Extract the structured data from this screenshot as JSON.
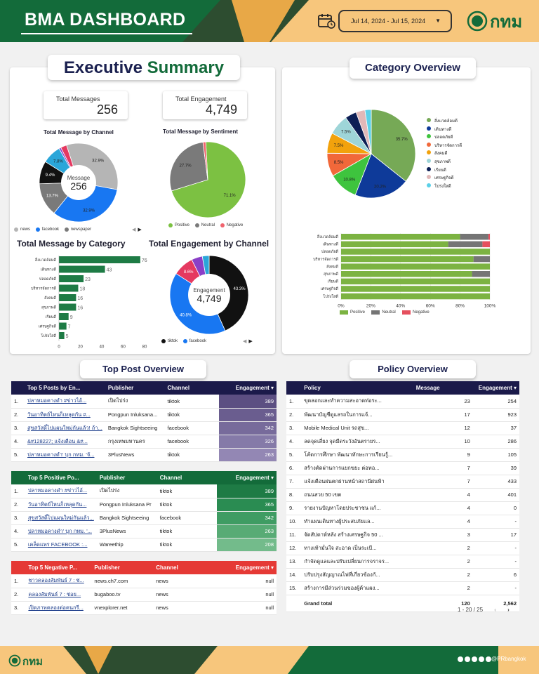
{
  "header": {
    "title": "BMA DASHBOARD",
    "date_range": "Jul 14, 2024 - Jul 15, 2024",
    "logo_text": "กทม"
  },
  "executive": {
    "title_a": "Executive",
    "title_b": "Summary",
    "kpi_messages_label": "Total Messages",
    "kpi_messages": "256",
    "kpi_engagement_label": "Total Engagement",
    "kpi_engagement": "4,749"
  },
  "chart_data": [
    {
      "type": "pie",
      "title": "Total Message by Channel",
      "center_label": "Message",
      "center_value": "256",
      "categories": [
        "news",
        "facebook",
        "newspaper",
        "",
        "",
        "",
        ""
      ],
      "values": [
        32.9,
        32.9,
        13.7,
        9.4,
        7.8,
        0.8,
        2.5
      ],
      "colors": [
        "#b5b5b5",
        "#1877f2",
        "#7a7a7a",
        "#111111",
        "#2aa6d9",
        "#8a3fc7",
        "#e53960"
      ],
      "slice_labels": [
        "32.9%",
        "32.9%",
        "13.7%",
        "9.4%",
        "7.8%",
        "",
        ""
      ]
    },
    {
      "type": "pie",
      "title": "Total Message by Sentiment",
      "categories": [
        "Positive",
        "Neutral",
        "Negative"
      ],
      "values": [
        71.1,
        27.7,
        1.2
      ],
      "colors": [
        "#7cc142",
        "#7a7a7a",
        "#f0646e"
      ],
      "slice_labels": [
        "71.1%",
        "27.7%",
        ""
      ]
    },
    {
      "type": "bar",
      "title": "Total Message by Category",
      "categories": [
        "สิ่งแวดล้อมดี",
        "เดินทางดี",
        "ปลอดภัยดี",
        "บริหารจัดการดี",
        "สังคมดี",
        "สุขภาพดี",
        "เรียนดี",
        "เศรษฐกิจดี",
        "โปร่งใสดี"
      ],
      "values": [
        76,
        43,
        23,
        18,
        16,
        16,
        9,
        7,
        5
      ],
      "xlim": [
        0,
        80
      ],
      "ticks": [
        "0",
        "20",
        "40",
        "60",
        "80"
      ]
    },
    {
      "type": "pie",
      "title": "Total Engagement by Channel",
      "center_label": "Engagement",
      "center_value": "4,749",
      "categories": [
        "tiktok",
        "facebook",
        "",
        "",
        ""
      ],
      "values": [
        43.3,
        40.8,
        8.6,
        4.5,
        2.8
      ],
      "colors": [
        "#111111",
        "#1877f2",
        "#e53960",
        "#8a3fc7",
        "#2aa6d9"
      ],
      "slice_labels": [
        "43.3%",
        "40.8%",
        "8.6%",
        "",
        ""
      ]
    },
    {
      "type": "pie",
      "title": "Category Overview",
      "categories": [
        "สิ่งแวดล้อมดี",
        "เดินทางดี",
        "ปลอดภัยดี",
        "บริหารจัดการดี",
        "สังคมดี",
        "สุขภาพดี",
        "เรียนดี",
        "เศรษฐกิจดี",
        "โปร่งใสดี"
      ],
      "values": [
        35.7,
        20.2,
        10.8,
        8.5,
        7.5,
        7.5,
        4.2,
        3.3,
        2.3
      ],
      "colors": [
        "#76a956",
        "#0e3a99",
        "#3ec43e",
        "#f1683a",
        "#f2a20c",
        "#9ed5d8",
        "#0d1f55",
        "#e0b8b8",
        "#5bd0e8"
      ],
      "slice_labels": [
        "35.7%",
        "20.2%",
        "10.8%",
        "8.5%",
        "7.5%",
        "7.5%",
        "",
        "",
        ""
      ]
    },
    {
      "type": "bar",
      "title": "",
      "stacked_100": true,
      "categories": [
        "สิ่งแวดล้อมดี",
        "เดินทางดี",
        "ปลอดภัยดี",
        "บริหารจัดการดี",
        "สังคมดี",
        "สุขภาพดี",
        "เรียนดี",
        "เศรษฐกิจดี",
        "โปร่งใสดี"
      ],
      "series": [
        {
          "name": "Positive",
          "values": [
            80,
            72,
            100,
            89,
            100,
            88,
            100,
            100,
            100
          ],
          "color": "#7cb342"
        },
        {
          "name": "Neutral",
          "values": [
            19,
            23,
            0,
            11,
            0,
            12,
            0,
            0,
            0
          ],
          "color": "#757575"
        },
        {
          "name": "Negative",
          "values": [
            1,
            5,
            0,
            0,
            0,
            0,
            0,
            0,
            0
          ],
          "color": "#e5505e"
        }
      ],
      "ticks": [
        "0%",
        "20%",
        "40%",
        "60%",
        "80%",
        "100%"
      ]
    }
  ],
  "category_overview": {
    "title": "Category Overview"
  },
  "top_post": {
    "title": "Top Post Overview",
    "headers": [
      "Top 5 Posts by En...",
      "Publisher",
      "Channel",
      "Engagement"
    ],
    "rows": [
      [
        "1.",
        "ปลาหมอคางดำ #ข่าวไอ้...",
        "เปิดไปร่ง",
        "tiktok",
        "389"
      ],
      [
        "2.",
        "วันอาทิตย์ไหนก็เหลุดกัน #...",
        "Pongpun Inluksana...",
        "tiktok",
        "365"
      ],
      [
        "3.",
        "สุขสวัสดิ์ไปแผนใหม่กันแล้ว! ถ้า...",
        "Bangkok Sightseeing",
        "facebook",
        "342"
      ],
      [
        "4.",
        "&#128227; แจ้งเตือน &#...",
        "กรุงเทพมหานคร",
        "facebook",
        "326"
      ],
      [
        "5.",
        "ปลาหมอคางดำ' บุก กทม. 'จั...",
        "3PlusNews",
        "tiktok",
        "263"
      ]
    ]
  },
  "top_positive": {
    "headers": [
      "Top 5 Positive Po...",
      "Publisher",
      "Channel",
      "Engagement"
    ],
    "rows": [
      [
        "1.",
        "ปลาหมอคางดำ #ข่าวไอ้...",
        "เปิดไปร่ง",
        "tiktok",
        "389"
      ],
      [
        "2.",
        "วันอาทิตย์ไหนก็เหลุดกัน...",
        "Pongpun Inluksana Pr",
        "tiktok",
        "365"
      ],
      [
        "3.",
        "สุขสวัสดิ์ไปแผนใหม่กันแล้ว...",
        "Bangkok Sightseeing",
        "facebook",
        "342"
      ],
      [
        "4.",
        "ปลาหมอคางดำ' บุก กทม. '...",
        "3PlusNews",
        "tiktok",
        "263"
      ],
      [
        "5.",
        "เคล็ดแพร FACEBOOK :...",
        "Wareethip",
        "tiktok",
        "208"
      ]
    ]
  },
  "top_negative": {
    "headers": [
      "Top 5 Negative P...",
      "Publisher",
      "Channel",
      "Engagement"
    ],
    "rows": [
      [
        "1.",
        "ชาวคลองสัมพันธ์ 7 : ช่...",
        "news.ch7.com",
        "news",
        "null"
      ],
      [
        "2.",
        "คลองสัมพันธ์ 7 : ช่อย...",
        "bugaboo.tv",
        "news",
        "null"
      ],
      [
        "3.",
        "เปิดภาพคลองต่อคนกรี...",
        "vnexplorer.net",
        "news",
        "null"
      ]
    ]
  },
  "policy": {
    "title": "Policy Overview",
    "headers": [
      "Policy",
      "Message",
      "Engagement"
    ],
    "rows": [
      [
        "1.",
        "ขุดลอกและทำความสะอาดท่อระ...",
        "23",
        "254"
      ],
      [
        "2.",
        "พัฒนาบัญชีดูแลรถในการแจ้...",
        "17",
        "923"
      ],
      [
        "3.",
        "Mobile Medical Unit รถสุข...",
        "12",
        "37"
      ],
      [
        "4.",
        "ลดจุดเสี่ยง จุดมืดระวังอันตรายร...",
        "10",
        "286"
      ],
      [
        "5.",
        "โค้ดการศึกษา พัฒนาทักษะการเรียนรู้...",
        "9",
        "105"
      ],
      [
        "6.",
        "สร้างตัดผ่านการแยกขยะ ต่อทอ...",
        "7",
        "39"
      ],
      [
        "7.",
        "แจ้งเตือนฝนตกผ่านหน้าสถานีฝนฟ้า",
        "7",
        "433"
      ],
      [
        "8.",
        "ถนนสวย 50 เขต",
        "4",
        "401"
      ],
      [
        "9.",
        "รายงานปัญหาโดยประชาชน แก้...",
        "4",
        "0"
      ],
      [
        "10.",
        "ทำแผนเดินทางผู้ประสบภัยแล...",
        "4",
        "-"
      ],
      [
        "11.",
        "จัดสัปดาห์หลัง สร้างเศรษฐกิจ 50 ...",
        "3",
        "17"
      ],
      [
        "12.",
        "ทางเท้ามั่นใจ สะอาด เป็นระเบี...",
        "2",
        "-"
      ],
      [
        "13.",
        "กำจัดดูแลและปรับเปลี่ยนการจราจร...",
        "2",
        "-"
      ],
      [
        "14.",
        "ปรับปรุงสัญญาณไฟที่เกี่ยวข้องกั...",
        "2",
        "6"
      ],
      [
        "15.",
        "สร้างการมีส่วนร่วมของผู้ค้าแผง...",
        "2",
        "-"
      ]
    ],
    "grand_total_label": "Grand total",
    "grand_total_message": "120",
    "grand_total_engagement": "2,562",
    "pagination": "1 - 20 / 25"
  },
  "footer": {
    "logo_text": "กทม",
    "handle": "@PRbangkok"
  },
  "legend": {
    "news": "news",
    "facebook": "facebook",
    "newspaper": "newspaper",
    "positive": "Positive",
    "neutral": "Neutral",
    "negative": "Negative",
    "tiktok": "tiktok"
  }
}
